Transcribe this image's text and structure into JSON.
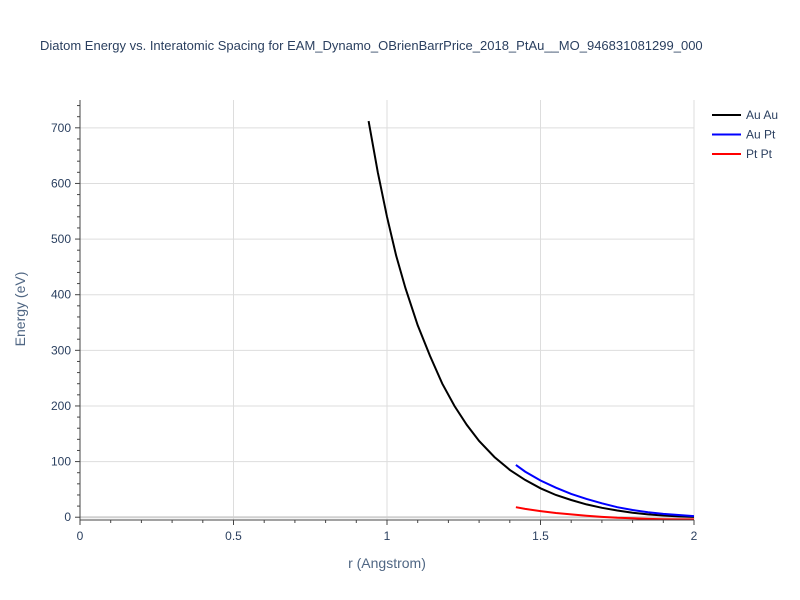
{
  "chart_data": {
    "type": "line",
    "title": "Diatom Energy vs. Interatomic Spacing for EAM_Dynamo_OBrienBarrPrice_2018_PtAu__MO_946831081299_000",
    "xlabel": "r (Angstrom)",
    "ylabel": "Energy (eV)",
    "xlim": [
      0,
      2
    ],
    "ylim": [
      -5,
      750
    ],
    "xticks": [
      0,
      0.5,
      1,
      1.5,
      2
    ],
    "xtick_labels": [
      "0",
      "0.5",
      "1",
      "1.5",
      "2"
    ],
    "yticks": [
      0,
      100,
      200,
      300,
      400,
      500,
      600,
      700
    ],
    "ytick_labels": [
      "0",
      "100",
      "200",
      "300",
      "400",
      "500",
      "600",
      "700"
    ],
    "grid": true,
    "legend_position": "top-right",
    "series": [
      {
        "name": "Au Au",
        "color": "#000000",
        "x": [
          0.94,
          0.97,
          1.0,
          1.03,
          1.06,
          1.1,
          1.14,
          1.18,
          1.22,
          1.26,
          1.3,
          1.35,
          1.4,
          1.45,
          1.5,
          1.55,
          1.6,
          1.65,
          1.7,
          1.75,
          1.8,
          1.85,
          1.9,
          1.95,
          2.0
        ],
        "y": [
          712,
          620,
          540,
          470,
          412,
          345,
          290,
          240,
          200,
          166,
          137,
          108,
          85,
          67,
          52,
          40,
          31,
          23,
          17,
          12,
          8,
          5,
          3,
          1.5,
          0.5
        ]
      },
      {
        "name": "Au Pt",
        "color": "#0000ff",
        "x": [
          1.42,
          1.45,
          1.5,
          1.55,
          1.6,
          1.65,
          1.7,
          1.75,
          1.8,
          1.85,
          1.9,
          1.95,
          2.0
        ],
        "y": [
          94,
          82,
          66,
          53,
          42,
          33,
          25,
          18,
          13,
          9,
          6,
          4,
          2
        ]
      },
      {
        "name": "Pt Pt",
        "color": "#ff0000",
        "x": [
          1.42,
          1.45,
          1.5,
          1.55,
          1.6,
          1.65,
          1.7,
          1.75,
          1.8,
          1.85,
          1.9,
          1.95,
          2.0
        ],
        "y": [
          18,
          15,
          11,
          7.5,
          5,
          2.5,
          0.5,
          -1,
          -2,
          -3,
          -3.5,
          -4,
          -4
        ]
      }
    ]
  }
}
